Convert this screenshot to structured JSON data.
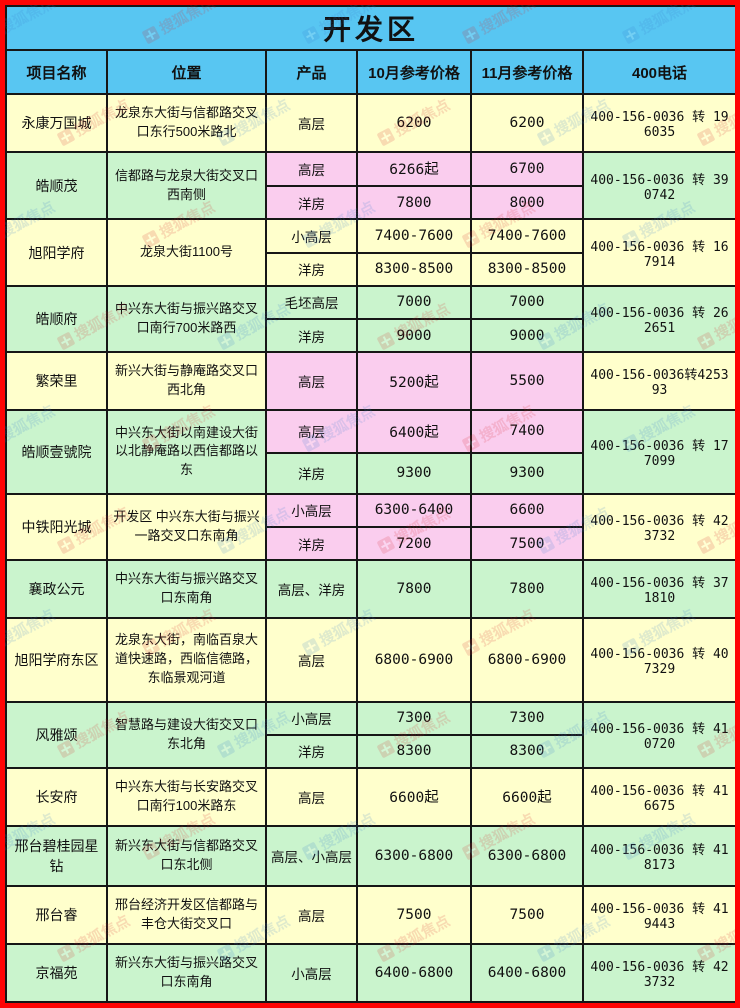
{
  "title": "开发区",
  "watermark": {
    "text": "搜狐焦点"
  },
  "columns": [
    "项目名称",
    "位置",
    "产品",
    "10月参考价格",
    "11月参考价格",
    "400电话"
  ],
  "colors": {
    "header_blue": "#58c6f2",
    "row_yellow": "#ffffcc",
    "row_green": "#caf4cd",
    "highlight_pink": "#facdee",
    "outer_border_red": "#fe0505",
    "grid_black": "#161616"
  },
  "rows": [
    {
      "name": "永康万国城",
      "location": "龙泉东大街与信都路交叉口东行500米路北",
      "phone": "400-156-0036 转 196035",
      "base": "yellow",
      "products": [
        {
          "product": "高层",
          "oct": "6200",
          "nov": "6200",
          "bg": "yellow"
        }
      ]
    },
    {
      "name": "皓顺茂",
      "location": "信都路与龙泉大街交叉口西南侧",
      "phone": "400-156-0036 转 390742",
      "base": "green",
      "products": [
        {
          "product": "高层",
          "oct": "6266起",
          "nov": "6700",
          "bg": "pink"
        },
        {
          "product": "洋房",
          "oct": "7800",
          "nov": "8000",
          "bg": "pink"
        }
      ]
    },
    {
      "name": "旭阳学府",
      "location": "龙泉大街1100号",
      "phone": "400-156-0036 转 167914",
      "base": "yellow",
      "products": [
        {
          "product": "小高层",
          "oct": "7400-7600",
          "nov": "7400-7600",
          "bg": "yellow"
        },
        {
          "product": "洋房",
          "oct": "8300-8500",
          "nov": "8300-8500",
          "bg": "yellow"
        }
      ]
    },
    {
      "name": "皓顺府",
      "location": "中兴东大街与振兴路交叉口南行700米路西",
      "phone": "400-156-0036 转 262651",
      "base": "green",
      "products": [
        {
          "product": "毛坯高层",
          "oct": "7000",
          "nov": "7000",
          "bg": "green"
        },
        {
          "product": "洋房",
          "oct": "9000",
          "nov": "9000",
          "bg": "green"
        }
      ]
    },
    {
      "name": "繁荣里",
      "location": "新兴大街与静庵路交叉口西北角",
      "phone": "400-156-0036转425393",
      "base": "yellow",
      "products": [
        {
          "product": "高层",
          "oct": "5200起",
          "nov": "5500",
          "bg": "pink"
        }
      ]
    },
    {
      "name": "皓顺壹號院",
      "location": "中兴东大街以南建设大街以北静庵路以西信都路以东",
      "phone": "400-156-0036 转 177099",
      "base": "green",
      "products": [
        {
          "product": "高层",
          "oct": "6400起",
          "nov": "7400",
          "bg": "pink"
        },
        {
          "product": "洋房",
          "oct": "9300",
          "nov": "9300",
          "bg": "green"
        }
      ]
    },
    {
      "name": "中铁阳光城",
      "location": "开发区 中兴东大街与振兴一路交叉口东南角",
      "phone": "400-156-0036 转 423732",
      "base": "yellow",
      "products": [
        {
          "product": "小高层",
          "oct": "6300-6400",
          "nov": "6600",
          "bg": "pink"
        },
        {
          "product": "洋房",
          "oct": "7200",
          "nov": "7500",
          "bg": "pink"
        }
      ]
    },
    {
      "name": "襄政公元",
      "location": "中兴东大街与振兴路交叉口东南角",
      "phone": "400-156-0036 转 371810",
      "base": "green",
      "products": [
        {
          "product": "高层、洋房",
          "oct": "7800",
          "nov": "7800",
          "bg": "green"
        }
      ]
    },
    {
      "name": "旭阳学府东区",
      "location": "龙泉东大街，南临百泉大道快速路，西临信德路，东临景观河道",
      "phone": "400-156-0036 转 407329",
      "base": "yellow",
      "products": [
        {
          "product": "高层",
          "oct": "6800-6900",
          "nov": "6800-6900",
          "bg": "yellow"
        }
      ]
    },
    {
      "name": "风雅颂",
      "location": "智慧路与建设大街交叉口东北角",
      "phone": "400-156-0036 转 410720",
      "base": "green",
      "products": [
        {
          "product": "小高层",
          "oct": "7300",
          "nov": "7300",
          "bg": "green"
        },
        {
          "product": "洋房",
          "oct": "8300",
          "nov": "8300",
          "bg": "green"
        }
      ]
    },
    {
      "name": "长安府",
      "location": "中兴东大街与长安路交叉口南行100米路东",
      "phone": "400-156-0036 转 416675",
      "base": "yellow",
      "products": [
        {
          "product": "高层",
          "oct": "6600起",
          "nov": "6600起",
          "bg": "yellow"
        }
      ]
    },
    {
      "name": "邢台碧桂园星钻",
      "location": "新兴东大街与信都路交叉口东北侧",
      "phone": "400-156-0036 转 418173",
      "base": "green",
      "products": [
        {
          "product": "高层、小高层",
          "oct": "6300-6800",
          "nov": "6300-6800",
          "bg": "green"
        }
      ]
    },
    {
      "name": "邢台睿",
      "location": "邢台经济开发区信都路与丰仓大街交叉口",
      "phone": "400-156-0036 转 419443",
      "base": "yellow",
      "products": [
        {
          "product": "高层",
          "oct": "7500",
          "nov": "7500",
          "bg": "yellow"
        }
      ]
    },
    {
      "name": "京福苑",
      "location": "新兴东大街与振兴路交叉口东南角",
      "phone": "400-156-0036 转 423732",
      "base": "green",
      "products": [
        {
          "product": "小高层",
          "oct": "6400-6800",
          "nov": "6400-6800",
          "bg": "green"
        }
      ]
    }
  ]
}
